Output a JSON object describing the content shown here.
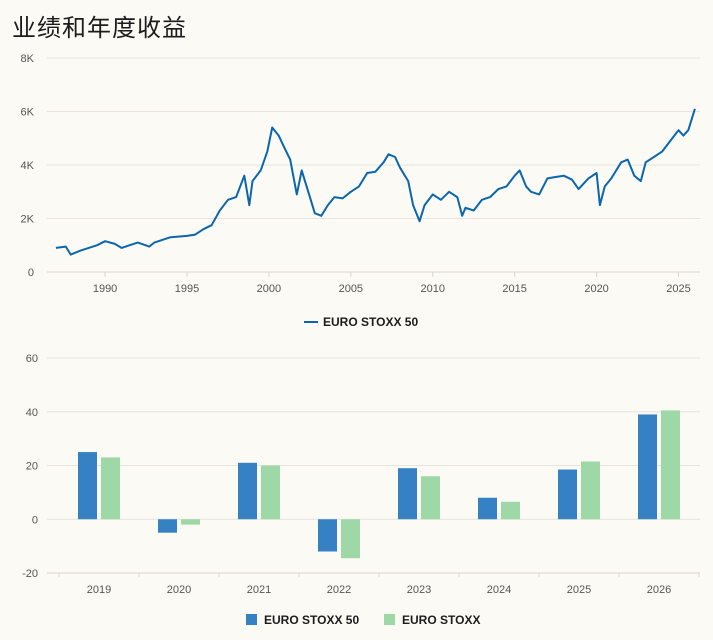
{
  "page": {
    "title": "业绩和年度收益"
  },
  "colors": {
    "line": "#0b66ae",
    "bar_a": "#3581c4",
    "bar_b": "#9ed8a6",
    "grid": "#e6e4dc",
    "background": "#fbfaf4"
  },
  "chart_data": [
    {
      "type": "line",
      "title": "",
      "xlabel": "",
      "ylabel": "",
      "xlim": [
        1987,
        2026.5
      ],
      "ylim": [
        0,
        8000
      ],
      "y_ticks": [
        {
          "value": 0,
          "label": "0"
        },
        {
          "value": 2000,
          "label": "2K"
        },
        {
          "value": 4000,
          "label": "4K"
        },
        {
          "value": 6000,
          "label": "6K"
        },
        {
          "value": 8000,
          "label": "8K"
        }
      ],
      "x_ticks": [
        {
          "value": 1990,
          "label": "1990"
        },
        {
          "value": 1995,
          "label": "1995"
        },
        {
          "value": 2000,
          "label": "2000"
        },
        {
          "value": 2005,
          "label": "2005"
        },
        {
          "value": 2010,
          "label": "2010"
        },
        {
          "value": 2015,
          "label": "2015"
        },
        {
          "value": 2020,
          "label": "2020"
        },
        {
          "value": 2025,
          "label": "2025"
        }
      ],
      "legend": {
        "position": "bottom",
        "entries": [
          "EURO STOXX 50"
        ]
      },
      "series": [
        {
          "name": "EURO STOXX 50",
          "x": [
            1987.0,
            1987.6,
            1987.9,
            1988.5,
            1989.5,
            1990.0,
            1990.6,
            1991.0,
            1992.0,
            1992.7,
            1993.0,
            1994.0,
            1995.0,
            1995.5,
            1996.0,
            1996.5,
            1997.0,
            1997.5,
            1998.0,
            1998.5,
            1998.8,
            1999.0,
            1999.5,
            1999.9,
            2000.2,
            2000.6,
            2000.9,
            2001.3,
            2001.7,
            2002.0,
            2002.5,
            2002.8,
            2003.2,
            2003.6,
            2004.0,
            2004.5,
            2005.0,
            2005.5,
            2006.0,
            2006.5,
            2007.0,
            2007.3,
            2007.7,
            2008.0,
            2008.5,
            2008.8,
            2009.2,
            2009.5,
            2010.0,
            2010.5,
            2011.0,
            2011.5,
            2011.8,
            2012.0,
            2012.5,
            2013.0,
            2013.5,
            2014.0,
            2014.5,
            2015.0,
            2015.3,
            2015.7,
            2016.0,
            2016.5,
            2017.0,
            2017.5,
            2018.0,
            2018.5,
            2018.9,
            2019.5,
            2020.0,
            2020.2,
            2020.5,
            2020.9,
            2021.5,
            2021.9,
            2022.3,
            2022.7,
            2023.0,
            2023.5,
            2024.0,
            2024.5,
            2025.0,
            2025.3,
            2025.6,
            2026.0
          ],
          "values": [
            900,
            950,
            650,
            800,
            1000,
            1150,
            1050,
            900,
            1100,
            950,
            1100,
            1300,
            1350,
            1400,
            1600,
            1750,
            2300,
            2700,
            2800,
            3600,
            2500,
            3400,
            3800,
            4500,
            5400,
            5100,
            4700,
            4200,
            2900,
            3800,
            2800,
            2200,
            2100,
            2500,
            2800,
            2750,
            3000,
            3200,
            3700,
            3750,
            4100,
            4400,
            4300,
            3900,
            3400,
            2500,
            1900,
            2500,
            2900,
            2700,
            3000,
            2800,
            2100,
            2400,
            2300,
            2700,
            2800,
            3100,
            3200,
            3600,
            3800,
            3200,
            3000,
            2900,
            3500,
            3550,
            3600,
            3450,
            3100,
            3500,
            3700,
            2500,
            3200,
            3500,
            4100,
            4200,
            3600,
            3400,
            4100,
            4300,
            4500,
            4900,
            5300,
            5100,
            5300,
            6100
          ]
        }
      ]
    },
    {
      "type": "bar",
      "title": "",
      "xlabel": "",
      "ylabel": "",
      "ylim": [
        -20,
        60
      ],
      "y_ticks": [
        {
          "value": -20,
          "label": "-20"
        },
        {
          "value": 0,
          "label": "0"
        },
        {
          "value": 20,
          "label": "20"
        },
        {
          "value": 40,
          "label": "40"
        },
        {
          "value": 60,
          "label": "60"
        }
      ],
      "categories": [
        "2019",
        "2020",
        "2021",
        "2022",
        "2023",
        "2024",
        "2025",
        "2026"
      ],
      "legend": {
        "position": "bottom",
        "entries": [
          "EURO STOXX 50",
          "EURO STOXX"
        ]
      },
      "series": [
        {
          "name": "EURO STOXX 50",
          "values": [
            25,
            -5,
            21,
            -12,
            19,
            8,
            18.5,
            39
          ]
        },
        {
          "name": "EURO STOXX",
          "values": [
            23,
            -2,
            20,
            -14.5,
            16,
            6.5,
            21.5,
            40.5
          ]
        }
      ]
    }
  ]
}
